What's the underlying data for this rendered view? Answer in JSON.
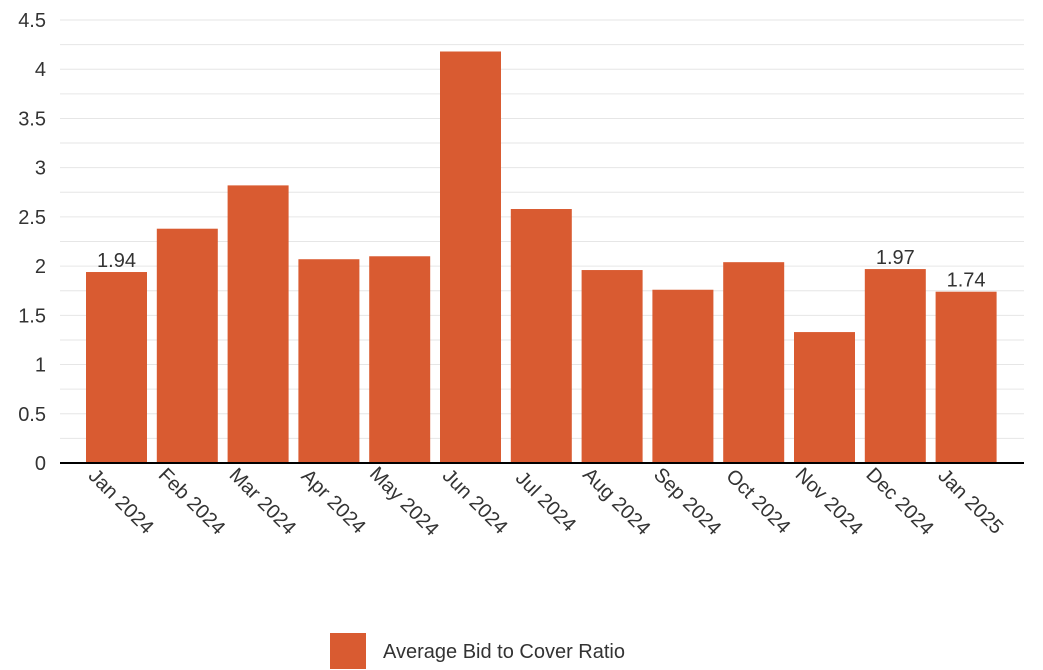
{
  "chart_data": {
    "type": "bar",
    "categories": [
      "Jan 2024",
      "Feb 2024",
      "Mar 2024",
      "Apr 2024",
      "May 2024",
      "Jun 2024",
      "Jul 2024",
      "Aug 2024",
      "Sep 2024",
      "Oct 2024",
      "Nov 2024",
      "Dec 2024",
      "Jan 2025"
    ],
    "series": [
      {
        "name": "Average Bid to Cover Ratio",
        "values": [
          1.94,
          2.38,
          2.82,
          2.07,
          2.1,
          4.18,
          2.58,
          1.96,
          1.76,
          2.04,
          1.33,
          1.97,
          1.74
        ],
        "color": "#d95b31"
      }
    ],
    "data_labels": [
      {
        "index": 0,
        "text": "1.94"
      },
      {
        "index": 11,
        "text": "1.97"
      },
      {
        "index": 12,
        "text": "1.74"
      }
    ],
    "y_ticks": [
      "0",
      "0.5",
      "1",
      "1.5",
      "2",
      "2.5",
      "3",
      "3.5",
      "4",
      "4.5"
    ],
    "ylim": [
      0,
      4.5
    ],
    "grid": true,
    "legend_position": "bottom-center",
    "title": "",
    "xlabel": "",
    "ylabel": ""
  }
}
